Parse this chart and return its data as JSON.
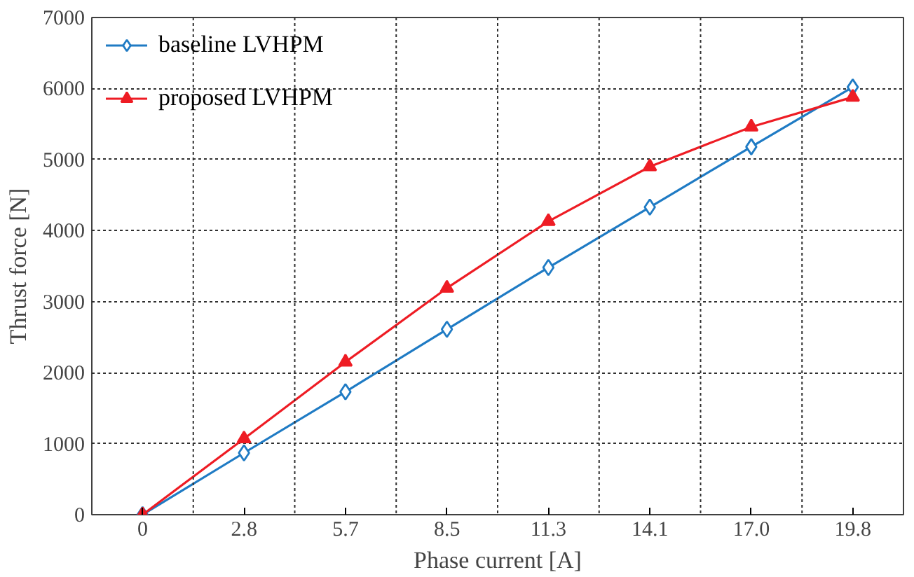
{
  "chart_data": {
    "type": "line",
    "xlabel": "Phase current [A]",
    "ylabel": "Thrust force [N]",
    "categories": [
      "0",
      "2.8",
      "5.7",
      "8.5",
      "11.3",
      "14.1",
      "17.0",
      "19.8"
    ],
    "series": [
      {
        "name": "baseline LVHPM",
        "color": "#1f7bc4",
        "marker": "diamond",
        "values": [
          0,
          870,
          1730,
          2610,
          3480,
          4330,
          5180,
          6020
        ]
      },
      {
        "name": "proposed LVHPM",
        "color": "#ee1c24",
        "marker": "triangle",
        "values": [
          0,
          1070,
          2150,
          3190,
          4130,
          4900,
          5460,
          5880
        ]
      }
    ],
    "ylim": [
      0,
      7000
    ],
    "yticks": [
      0,
      1000,
      2000,
      3000,
      4000,
      5000,
      6000,
      7000
    ],
    "grid": true,
    "legend": "top left",
    "line_style": "solid"
  }
}
